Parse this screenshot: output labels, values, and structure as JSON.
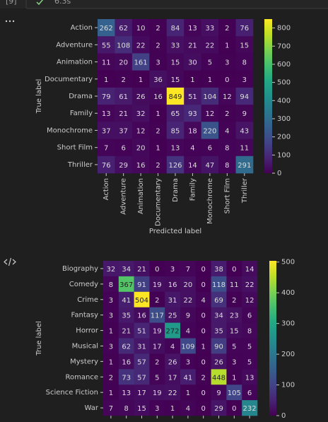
{
  "cell_header": {
    "prompt": "[9]",
    "duration": "6.3s"
  },
  "chart_data": [
    {
      "type": "heatmap",
      "ylabel": "True label",
      "xlabel": "Predicted label",
      "categories": [
        "Action",
        "Adventure",
        "Animation",
        "Documentary",
        "Drama",
        "Family",
        "Monochrome",
        "Short Film",
        "Thriller"
      ],
      "values": [
        [
          262,
          62,
          10,
          2,
          84,
          13,
          33,
          2,
          76
        ],
        [
          55,
          108,
          22,
          2,
          33,
          21,
          22,
          1,
          15
        ],
        [
          11,
          20,
          161,
          3,
          15,
          30,
          5,
          3,
          8
        ],
        [
          1,
          2,
          1,
          36,
          15,
          1,
          1,
          0,
          3
        ],
        [
          79,
          61,
          26,
          16,
          849,
          51,
          104,
          12,
          94
        ],
        [
          13,
          21,
          32,
          1,
          65,
          93,
          12,
          2,
          9
        ],
        [
          37,
          37,
          12,
          2,
          85,
          18,
          220,
          4,
          43
        ],
        [
          7,
          6,
          20,
          1,
          13,
          4,
          6,
          8,
          11
        ],
        [
          76,
          29,
          16,
          2,
          126,
          14,
          47,
          8,
          291
        ]
      ],
      "colormap": "viridis",
      "clim": [
        0,
        849
      ],
      "cticks": [
        0,
        100,
        200,
        300,
        400,
        500,
        600,
        700,
        800
      ]
    },
    {
      "type": "heatmap",
      "ylabel": "True label",
      "categories": [
        "Biography",
        "Comedy",
        "Crime",
        "Fantasy",
        "Horror",
        "Musical",
        "Mystery",
        "Romance",
        "Science Fiction",
        "War"
      ],
      "values": [
        [
          32,
          34,
          21,
          0,
          3,
          7,
          0,
          38,
          0,
          14
        ],
        [
          8,
          367,
          91,
          19,
          16,
          20,
          0,
          118,
          11,
          22
        ],
        [
          3,
          41,
          504,
          2,
          31,
          22,
          4,
          69,
          2,
          12
        ],
        [
          3,
          35,
          16,
          117,
          25,
          9,
          0,
          34,
          23,
          6
        ],
        [
          1,
          21,
          51,
          19,
          272,
          4,
          0,
          35,
          15,
          8
        ],
        [
          3,
          62,
          31,
          17,
          4,
          109,
          1,
          90,
          5,
          5
        ],
        [
          1,
          16,
          57,
          2,
          26,
          3,
          0,
          26,
          3,
          5
        ],
        [
          2,
          73,
          57,
          5,
          17,
          41,
          2,
          448,
          1,
          13
        ],
        [
          1,
          13,
          17,
          19,
          22,
          1,
          0,
          9,
          105,
          6
        ],
        [
          7,
          8,
          15,
          3,
          1,
          4,
          0,
          29,
          0,
          232
        ]
      ],
      "colormap": "viridis",
      "clim": [
        0,
        504
      ],
      "cticks": [
        0,
        100,
        200,
        300,
        400,
        500
      ]
    }
  ]
}
